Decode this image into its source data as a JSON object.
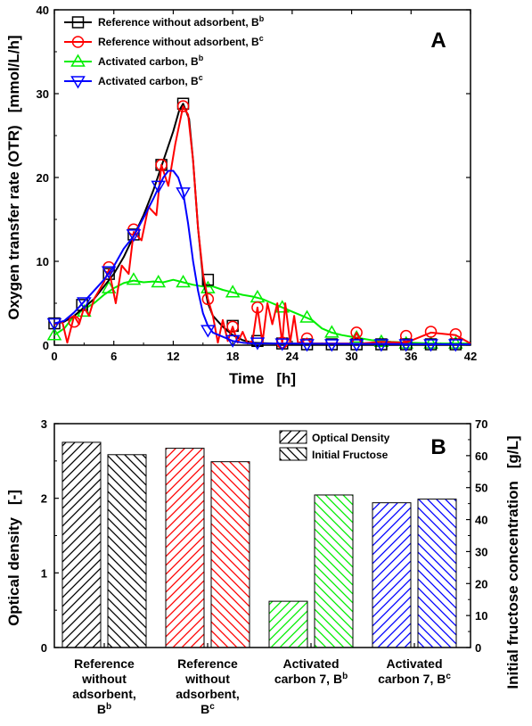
{
  "chart_data": [
    {
      "type": "line",
      "panel_label": "A",
      "xlabel_parts": [
        "Time",
        "[h]"
      ],
      "ylabel_parts": [
        "Oxygen transfer rate (OTR)",
        "[mmol/L/h]"
      ],
      "xlim": [
        0,
        42
      ],
      "ylim": [
        0,
        40
      ],
      "xticks": [
        0,
        6,
        12,
        18,
        24,
        30,
        36,
        42
      ],
      "yticks": [
        0,
        10,
        20,
        30,
        40
      ],
      "legend_position": "top-left",
      "series": [
        {
          "name": "Reference without adsorbent, B",
          "superscript": "b",
          "color": "#000000",
          "marker": "square",
          "line": [
            [
              0,
              2.5
            ],
            [
              1,
              2.8
            ],
            [
              2,
              3.5
            ],
            [
              3,
              4.5
            ],
            [
              4,
              5.5
            ],
            [
              5,
              7
            ],
            [
              6,
              8.5
            ],
            [
              7,
              10.5
            ],
            [
              8,
              13
            ],
            [
              9,
              15.5
            ],
            [
              10,
              18.5
            ],
            [
              11,
              22
            ],
            [
              12,
              25.5
            ],
            [
              12.6,
              28
            ],
            [
              13,
              28.8
            ],
            [
              13.6,
              27
            ],
            [
              14,
              22
            ],
            [
              14.5,
              14
            ],
            [
              15,
              8
            ],
            [
              15.5,
              5
            ],
            [
              16,
              3.5
            ],
            [
              17,
              2.2
            ],
            [
              18,
              1.2
            ],
            [
              19,
              0.6
            ],
            [
              20,
              0.3
            ],
            [
              22,
              0.2
            ],
            [
              42,
              0.1
            ]
          ],
          "markers": [
            [
              0,
              2.6
            ],
            [
              2.8,
              4.8
            ],
            [
              5.5,
              8.5
            ],
            [
              8,
              13.2
            ],
            [
              10.8,
              21.5
            ],
            [
              13,
              28.8
            ],
            [
              15.5,
              7.8
            ],
            [
              18,
              2.3
            ],
            [
              20.5,
              0.5
            ],
            [
              23,
              0.2
            ],
            [
              25.5,
              0.1
            ],
            [
              28,
              0.1
            ],
            [
              30.5,
              0.1
            ],
            [
              33,
              0.1
            ],
            [
              35.5,
              0.1
            ],
            [
              38,
              0.1
            ],
            [
              40.5,
              0.1
            ]
          ]
        },
        {
          "name": "Reference without adsorbent, B",
          "superscript": "c",
          "color": "#ff0000",
          "marker": "circle",
          "line": [
            [
              0,
              2.5
            ],
            [
              0.8,
              2.8
            ],
            [
              1.3,
              0.3
            ],
            [
              2,
              3.5
            ],
            [
              2.5,
              2.5
            ],
            [
              3,
              4.5
            ],
            [
              3.5,
              3.5
            ],
            [
              4,
              5.5
            ],
            [
              5,
              7.5
            ],
            [
              5.5,
              9
            ],
            [
              6.2,
              5
            ],
            [
              6.8,
              9.5
            ],
            [
              7.5,
              8.5
            ],
            [
              8,
              13.5
            ],
            [
              8.8,
              12.5
            ],
            [
              9.5,
              16.5
            ],
            [
              10.3,
              15.5
            ],
            [
              10.8,
              21.5
            ],
            [
              11.5,
              19
            ],
            [
              12.2,
              24
            ],
            [
              13,
              28.5
            ],
            [
              13.5,
              27.5
            ],
            [
              14,
              22
            ],
            [
              14.5,
              14
            ],
            [
              15,
              8.5
            ],
            [
              15.5,
              5.5
            ],
            [
              16,
              3.5
            ],
            [
              16.5,
              0.3
            ],
            [
              17,
              3
            ],
            [
              17.5,
              0.5
            ],
            [
              18,
              2.2
            ],
            [
              18.5,
              0.3
            ],
            [
              19,
              1.6
            ],
            [
              19.5,
              0.2
            ],
            [
              20,
              0.5
            ],
            [
              20.5,
              4.5
            ],
            [
              21,
              0.3
            ],
            [
              21.5,
              5
            ],
            [
              22,
              2.5
            ],
            [
              22.5,
              5
            ],
            [
              23,
              0.2
            ],
            [
              23.3,
              5
            ],
            [
              23.8,
              0.3
            ],
            [
              24.2,
              3.5
            ],
            [
              24.6,
              0.2
            ],
            [
              25.5,
              0.8
            ],
            [
              26,
              0.2
            ],
            [
              30,
              0.2
            ],
            [
              30.5,
              1.5
            ],
            [
              31,
              0.2
            ],
            [
              33,
              0.4
            ],
            [
              35.5,
              0.3
            ],
            [
              38,
              1.5
            ],
            [
              40.5,
              1.2
            ],
            [
              42,
              0.2
            ]
          ],
          "markers": [
            [
              2,
              2.8
            ],
            [
              5.5,
              9.3
            ],
            [
              8,
              13.8
            ],
            [
              10.8,
              21.5
            ],
            [
              13,
              28.5
            ],
            [
              15.5,
              5.5
            ],
            [
              18,
              2.2
            ],
            [
              20.5,
              4.5
            ],
            [
              23,
              0.3
            ],
            [
              25.5,
              0.8
            ],
            [
              30.5,
              1.5
            ],
            [
              35.5,
              1.1
            ],
            [
              38,
              1.6
            ],
            [
              40.5,
              1.3
            ]
          ]
        },
        {
          "name": "Activated carbon, B",
          "superscript": "b",
          "color": "#00ee00",
          "marker": "triangle-up",
          "line": [
            [
              0,
              1.2
            ],
            [
              1,
              2
            ],
            [
              2,
              3.5
            ],
            [
              3,
              4.3
            ],
            [
              4,
              5
            ],
            [
              5,
              6
            ],
            [
              6,
              6.8
            ],
            [
              7,
              7.4
            ],
            [
              8,
              7.7
            ],
            [
              9,
              7.5
            ],
            [
              10,
              7.6
            ],
            [
              11,
              7.5
            ],
            [
              12,
              7.8
            ],
            [
              13,
              7.5
            ],
            [
              14,
              7.2
            ],
            [
              15,
              7
            ],
            [
              16,
              7
            ],
            [
              17,
              6.6
            ],
            [
              18,
              6.3
            ],
            [
              19,
              6
            ],
            [
              20,
              5.8
            ],
            [
              21,
              5.5
            ],
            [
              22,
              5
            ],
            [
              23,
              4.5
            ],
            [
              24,
              4
            ],
            [
              25,
              3.5
            ],
            [
              26,
              3
            ],
            [
              27,
              2
            ],
            [
              28,
              1.5
            ],
            [
              29,
              1.2
            ],
            [
              30,
              1
            ],
            [
              31,
              0.8
            ],
            [
              32,
              0.6
            ],
            [
              33,
              0.5
            ],
            [
              34,
              0.4
            ],
            [
              36,
              0.3
            ],
            [
              38,
              0.2
            ],
            [
              42,
              0.2
            ]
          ],
          "markers": [
            [
              0,
              1.2
            ],
            [
              3,
              4
            ],
            [
              5.5,
              6.8
            ],
            [
              8,
              7.8
            ],
            [
              10.5,
              7.5
            ],
            [
              13,
              7.5
            ],
            [
              15.5,
              6.8
            ],
            [
              18,
              6.3
            ],
            [
              20.5,
              5.7
            ],
            [
              23,
              4.5
            ],
            [
              25.5,
              3.3
            ],
            [
              28,
              1.5
            ],
            [
              30.5,
              0.9
            ],
            [
              33,
              0.4
            ],
            [
              35.5,
              0.2
            ],
            [
              38,
              0.2
            ],
            [
              40.5,
              0.2
            ]
          ]
        },
        {
          "name": "Activated carbon, B",
          "superscript": "c",
          "color": "#0000ff",
          "marker": "triangle-down",
          "line": [
            [
              0,
              2.6
            ],
            [
              1,
              2.9
            ],
            [
              2,
              3.9
            ],
            [
              3,
              5.2
            ],
            [
              4,
              6.5
            ],
            [
              5,
              7.8
            ],
            [
              6,
              9.4
            ],
            [
              7,
              11.5
            ],
            [
              8,
              13
            ],
            [
              9,
              15.2
            ],
            [
              10,
              17.5
            ],
            [
              11,
              20
            ],
            [
              11.5,
              20.8
            ],
            [
              12,
              20.8
            ],
            [
              12.5,
              20
            ],
            [
              13,
              18.2
            ],
            [
              13.5,
              14.5
            ],
            [
              14,
              10
            ],
            [
              14.5,
              6.5
            ],
            [
              15,
              3.8
            ],
            [
              15.5,
              2.3
            ],
            [
              16,
              1.5
            ],
            [
              17,
              1
            ],
            [
              18,
              0.5
            ],
            [
              19,
              0.3
            ],
            [
              20,
              0.2
            ],
            [
              42,
              0.1
            ]
          ],
          "markers": [
            [
              0,
              2.6
            ],
            [
              3,
              5.1
            ],
            [
              5.5,
              8.8
            ],
            [
              8,
              13.2
            ],
            [
              10.5,
              19
            ],
            [
              13,
              18.2
            ],
            [
              15.5,
              1.8
            ],
            [
              18,
              0.6
            ],
            [
              20.5,
              0.3
            ],
            [
              23,
              0.2
            ],
            [
              25.5,
              0.1
            ],
            [
              28,
              0.1
            ],
            [
              30.5,
              0.1
            ],
            [
              33,
              0.1
            ],
            [
              35.5,
              0.1
            ],
            [
              38,
              0.1
            ],
            [
              40.5,
              0.1
            ]
          ]
        }
      ]
    },
    {
      "type": "bar",
      "panel_label": "B",
      "ylabel_parts": [
        "Optical density",
        "[-]"
      ],
      "y2label_parts": [
        "Initial fructose concentration",
        "[g/L]"
      ],
      "ylim": [
        0,
        3
      ],
      "y2lim": [
        0,
        70
      ],
      "yticks": [
        0,
        1,
        2,
        3
      ],
      "y2ticks": [
        0,
        10,
        20,
        30,
        40,
        50,
        60,
        70
      ],
      "legend_position": "top-right",
      "categories": [
        {
          "lines": [
            "Reference",
            "without",
            "adsorbent,"
          ],
          "base": "B",
          "superscript": "b",
          "color": "#000000"
        },
        {
          "lines": [
            "Reference",
            "without",
            "adsorbent,"
          ],
          "base": "B",
          "superscript": "c",
          "color": "#ff0000"
        },
        {
          "lines": [
            "Activated"
          ],
          "base": "carbon 7, B",
          "superscript": "b",
          "color": "#00ee00"
        },
        {
          "lines": [
            "Activated"
          ],
          "base": "carbon 7, B",
          "superscript": "c",
          "color": "#0000ff"
        }
      ],
      "series": [
        {
          "name": "Optical Density",
          "axis": "left",
          "hatch": "forward",
          "values": [
            2.75,
            2.67,
            0.62,
            1.94
          ]
        },
        {
          "name": "Initial Fructose",
          "axis": "right",
          "hatch": "backward",
          "values": [
            60.3,
            58.1,
            47.7,
            46.4
          ]
        }
      ]
    }
  ]
}
